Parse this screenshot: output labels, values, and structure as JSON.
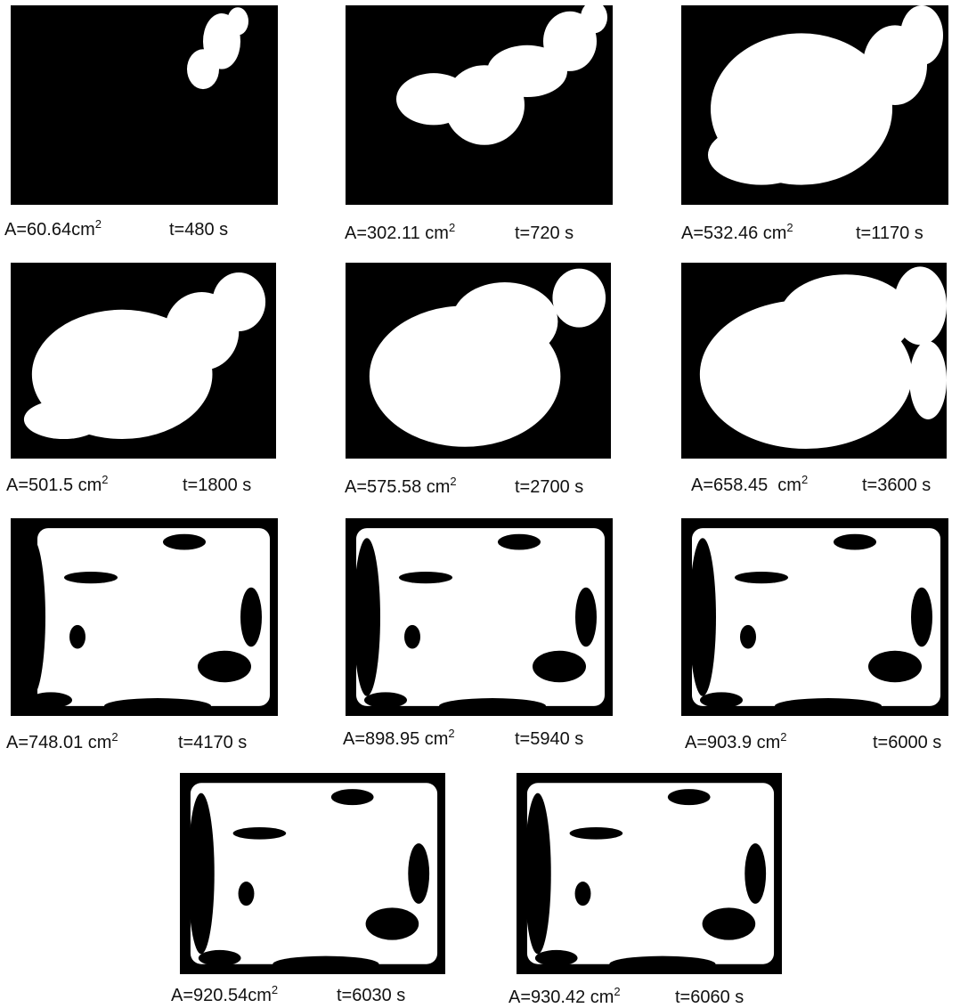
{
  "panels": [
    {
      "area": "A=60.64cm",
      "exponent": "2",
      "time": "t=480 s"
    },
    {
      "area": "A=302.11 cm",
      "exponent": "2",
      "time": "t=720 s"
    },
    {
      "area": "A=532.46 cm",
      "exponent": "2",
      "time": "t=1170 s"
    },
    {
      "area": "A=501.5 cm",
      "exponent": "2",
      "time": "t=1800 s"
    },
    {
      "area": "A=575.58 cm",
      "exponent": "2",
      "time": "t=2700 s"
    },
    {
      "area": "A=658.45  cm",
      "exponent": "2",
      "time": "t=3600 s"
    },
    {
      "area": "A=748.01 cm",
      "exponent": "2",
      "time": "t=4170 s"
    },
    {
      "area": "A=898.95 cm",
      "exponent": "2",
      "time": "t=5940 s"
    },
    {
      "area": "A=903.9 cm",
      "exponent": "2",
      "time": "t=6000 s"
    },
    {
      "area": "A=920.54cm",
      "exponent": "2",
      "time": "t=6030 s"
    },
    {
      "area": "A=930.42 cm",
      "exponent": "2",
      "time": "t=6060 s"
    }
  ]
}
